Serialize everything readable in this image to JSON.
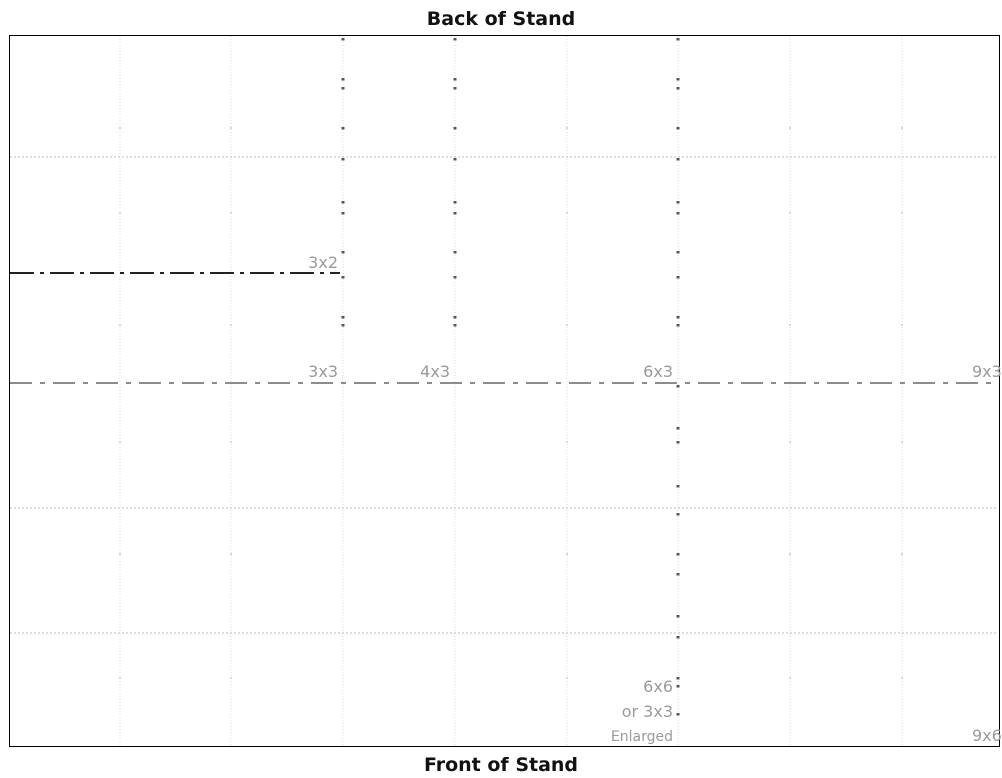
{
  "headings": {
    "back": "Back of Stand",
    "front": "Front of Stand"
  },
  "labels": {
    "size_3x2": "3x2",
    "size_3x3": "3x3",
    "size_4x3": "4x3",
    "size_6x3": "6x3",
    "size_9x3": "9x3",
    "size_6x6": "6x6",
    "or_3x3": "or 3x3",
    "enlarged": "Enlarged",
    "size_9x6": "9x6"
  },
  "colors": {
    "outer_border": "#000000",
    "grid_dotted": "#bbbbbb",
    "grid_faint": "#d8d8d8",
    "dash_dark": "#222222",
    "dash_mid": "#666666",
    "label_grey": "#9a9a9a",
    "marker": "#555555"
  }
}
